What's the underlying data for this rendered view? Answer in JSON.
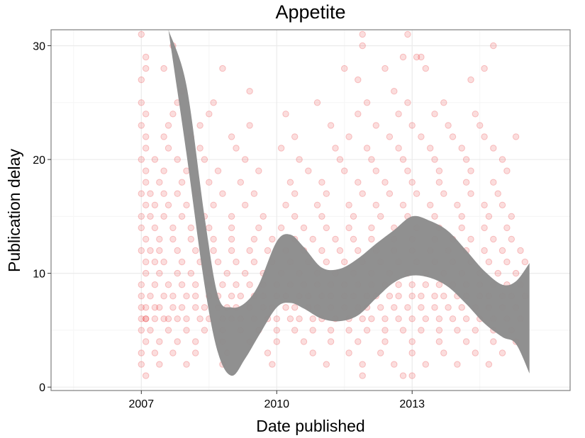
{
  "chart_data": {
    "type": "scatter",
    "title": "Appetite",
    "xlabel": "Date published",
    "ylabel": "Publication delay",
    "xlim": [
      2005.0,
      2016.5
    ],
    "ylim": [
      -0.3,
      31.4
    ],
    "x_ticks": [
      {
        "value": 2007,
        "label": "2007"
      },
      {
        "value": 2010,
        "label": "2010"
      },
      {
        "value": 2013,
        "label": "2013"
      }
    ],
    "y_ticks": [
      {
        "value": 0,
        "label": "0"
      },
      {
        "value": 10,
        "label": "10"
      },
      {
        "value": 20,
        "label": "20"
      },
      {
        "value": 30,
        "label": "30"
      }
    ],
    "grid": true,
    "legend": "none",
    "point_color": "#e41a1c",
    "point_alpha": 0.15,
    "band_color": "#8c8c8c",
    "smooth_band": {
      "x": [
        2007.6,
        2008.0,
        2008.4,
        2008.7,
        2009.0,
        2009.3,
        2009.6,
        2010.0,
        2010.3,
        2010.6,
        2011.0,
        2011.4,
        2011.8,
        2012.2,
        2012.6,
        2013.0,
        2013.4,
        2013.8,
        2014.2,
        2014.6,
        2015.0,
        2015.3,
        2015.6
      ],
      "lower": [
        31.4,
        20.5,
        9.0,
        3.0,
        1.0,
        2.5,
        4.5,
        7.0,
        7.4,
        6.9,
        6.0,
        5.8,
        6.3,
        7.8,
        9.2,
        9.8,
        9.6,
        8.8,
        7.3,
        5.6,
        4.4,
        3.8,
        1.2
      ],
      "upper": [
        31.4,
        26.5,
        15.0,
        8.0,
        7.0,
        7.4,
        9.0,
        12.8,
        13.4,
        12.3,
        10.5,
        10.4,
        11.3,
        12.6,
        13.8,
        15.0,
        14.6,
        13.7,
        12.0,
        10.2,
        9.0,
        9.3,
        10.9
      ]
    },
    "points": {
      "x": [
        2007.0,
        2007.1,
        2007.1,
        2007.3,
        2007.5,
        2007.6,
        2007.8,
        2008.0,
        2008.3,
        2008.5,
        2008.8,
        2009.0,
        2009.2,
        2009.5,
        2009.8,
        2010.0,
        2010.3,
        2010.5,
        2010.8,
        2011.0,
        2011.3,
        2011.6,
        2011.9,
        2012.1,
        2012.4,
        2012.7,
        2013.0,
        2013.3,
        2013.6,
        2013.9,
        2014.2,
        2014.5,
        2014.8,
        2015.1,
        2015.4,
        2007.0,
        2007.1,
        2007.3,
        2007.4,
        2007.7,
        2007.9,
        2008.2,
        2008.4,
        2008.7,
        2008.9,
        2009.1,
        2009.4,
        2009.7,
        2009.9,
        2010.2,
        2010.4,
        2010.7,
        2010.9,
        2011.2,
        2011.5,
        2011.8,
        2012.0,
        2012.3,
        2012.6,
        2012.9,
        2013.2,
        2013.5,
        2013.8,
        2014.1,
        2014.4,
        2014.7,
        2015.0,
        2015.3,
        2007.0,
        2007.2,
        2007.5,
        2007.7,
        2008.0,
        2008.2,
        2008.5,
        2008.7,
        2009.0,
        2009.2,
        2009.5,
        2009.7,
        2010.0,
        2010.2,
        2010.5,
        2010.7,
        2011.0,
        2011.2,
        2011.5,
        2011.7,
        2012.0,
        2012.2,
        2012.5,
        2012.7,
        2013.0,
        2013.2,
        2013.5,
        2013.7,
        2014.0,
        2014.2,
        2014.5,
        2014.7,
        2015.0,
        2015.2,
        2015.5,
        2007.0,
        2007.3,
        2007.6,
        2007.9,
        2008.2,
        2008.5,
        2008.8,
        2009.1,
        2009.4,
        2009.7,
        2010.0,
        2010.3,
        2010.6,
        2010.9,
        2011.2,
        2011.5,
        2011.8,
        2012.1,
        2012.4,
        2012.7,
        2013.0,
        2013.3,
        2013.6,
        2013.9,
        2014.2,
        2014.5,
        2014.8,
        2015.1,
        2015.4,
        2007.1,
        2007.4,
        2007.8,
        2008.1,
        2008.5,
        2008.9,
        2009.3,
        2009.7,
        2010.1,
        2010.5,
        2010.9,
        2011.3,
        2011.7,
        2012.1,
        2012.5,
        2012.9,
        2013.3,
        2013.7,
        2014.1,
        2014.5,
        2014.9,
        2015.3,
        2007.0,
        2007.2,
        2007.6,
        2008.0,
        2008.4,
        2008.8,
        2009.2,
        2009.6,
        2010.0,
        2010.4,
        2010.8,
        2011.2,
        2011.6,
        2012.0,
        2012.4,
        2012.8,
        2013.2,
        2013.6,
        2014.0,
        2014.4,
        2014.8,
        2015.2,
        2007.1,
        2007.3,
        2007.5,
        2007.9,
        2008.3,
        2008.7,
        2009.1,
        2009.5,
        2009.9,
        2010.3,
        2010.7,
        2011.1,
        2011.5,
        2011.9,
        2012.3,
        2012.7,
        2013.1,
        2013.5,
        2013.9,
        2014.3,
        2014.7,
        2015.1,
        2015.5,
        2007.0,
        2007.2,
        2007.4,
        2007.8,
        2008.2,
        2008.6,
        2009.0,
        2009.4,
        2009.8,
        2010.2,
        2010.6,
        2011.0,
        2011.4,
        2011.8,
        2012.2,
        2012.6,
        2013.0,
        2013.4,
        2013.8,
        2014.2,
        2014.6,
        2015.0,
        2015.4,
        2007.1,
        2007.4,
        2007.7,
        2008.1,
        2008.6,
        2009.0,
        2009.5,
        2009.9,
        2010.4,
        2010.8,
        2011.3,
        2011.7,
        2012.1,
        2012.6,
        2013.0,
        2013.5,
        2013.9,
        2014.3,
        2014.8,
        2015.2,
        2007.0,
        2007.3,
        2007.7,
        2008.1,
        2008.5,
        2009.0,
        2009.6,
        2010.1,
        2010.6,
        2011.1,
        2011.6,
        2012.1,
        2012.6,
        2013.1,
        2013.6,
        2014.1,
        2014.6,
        2015.1,
        2007.1,
        2007.4,
        2007.8,
        2008.2,
        2008.8,
        2009.4,
        2010.0,
        2010.6,
        2011.2,
        2011.8,
        2012.4,
        2013.0,
        2013.6,
        2014.2,
        2014.8,
        2015.3,
        2007.0,
        2007.2,
        2007.5,
        2007.9,
        2008.4,
        2009.0,
        2009.7,
        2010.4,
        2011.0,
        2011.7,
        2012.3,
        2012.9,
        2013.5,
        2014.1,
        2014.7,
        2015.2,
        2007.1,
        2007.3,
        2007.6,
        2008.0,
        2008.6,
        2009.3,
        2010.2,
        2010.9,
        2011.6,
        2012.2,
        2012.8,
        2013.4,
        2014.0,
        2014.6,
        2015.0,
        2007.0,
        2007.2,
        2007.5,
        2007.8,
        2008.2,
        2008.8,
        2009.5,
        2010.4,
        2011.1,
        2011.9,
        2012.5,
        2013.1,
        2013.7,
        2014.3,
        2014.9,
        2007.1,
        2007.4,
        2007.9,
        2008.5,
        2009.2,
        2010.3,
        2011.0,
        2011.8,
        2012.4,
        2013.0,
        2013.6,
        2014.2,
        2014.8,
        2007.0,
        2007.3,
        2007.7,
        2008.2,
        2008.9,
        2009.8,
        2010.8,
        2011.6,
        2012.3,
        2013.0,
        2013.7,
        2014.4,
        2015.0,
        2007.1,
        2007.5,
        2008.0,
        2008.7,
        2009.6,
        2010.7,
        2011.5,
        2012.2,
        2012.9,
        2013.6,
        2014.3,
        2015.1,
        2007.0,
        2007.3,
        2007.8,
        2008.4,
        2009.3,
        2010.5,
        2011.4,
        2012.1,
        2012.8,
        2013.5,
        2014.2,
        2015.0,
        2007.1,
        2007.6,
        2008.3,
        2009.1,
        2010.1,
        2011.3,
        2012.0,
        2012.7,
        2013.4,
        2014.1,
        2014.8,
        2007.0,
        2007.4,
        2008.0,
        2008.8,
        2009.9,
        2011.1,
        2011.9,
        2012.6,
        2013.3,
        2014.0,
        2014.7,
        2007.1,
        2007.5,
        2008.1,
        2009.0,
        2010.4,
        2011.6,
        2012.5,
        2013.2,
        2013.9,
        2014.6,
        2015.3,
        2007.0,
        2007.6,
        2008.3,
        2009.4,
        2011.2,
        2012.2,
        2013.0,
        2013.8,
        2014.5,
        2007.1,
        2007.7,
        2008.5,
        2010.2,
        2011.8,
        2012.7,
        2013.5,
        2014.4,
        2007.0,
        2007.8,
        2008.6,
        2010.9,
        2012.0,
        2012.9,
        2013.7,
        2007.1,
        2007.5,
        2008.8,
        2011.5,
        2012.4,
        2013.3,
        2014.6,
        2007.0,
        2007.9,
        2009.4,
        2011.8,
        2012.6,
        2013.1,
        2014.3,
        2007.1,
        2007.7,
        2011.9,
        2012.8,
        2013.2,
        2014.8,
        2007.0,
        2011.9,
        2012.9,
        2013.0,
        2007.1,
        2011.9,
        2012.8
      ],
      "y": [
        6,
        6,
        6,
        6,
        6,
        6,
        6,
        6,
        6,
        6,
        6,
        6,
        6,
        6,
        6,
        6,
        6,
        6,
        6,
        6,
        6,
        6,
        6,
        6,
        6,
        6,
        6,
        6,
        6,
        6,
        6,
        6,
        6,
        6,
        6,
        7,
        7,
        7,
        7,
        7,
        7,
        7,
        7,
        7,
        7,
        7,
        7,
        7,
        7,
        7,
        7,
        7,
        7,
        7,
        7,
        7,
        7,
        7,
        7,
        7,
        7,
        7,
        7,
        7,
        7,
        7,
        7,
        7,
        8,
        8,
        8,
        8,
        8,
        8,
        8,
        8,
        8,
        8,
        8,
        8,
        8,
        8,
        8,
        8,
        8,
        8,
        8,
        8,
        8,
        8,
        8,
        8,
        8,
        8,
        8,
        8,
        8,
        8,
        8,
        8,
        8,
        8,
        8,
        9,
        9,
        9,
        9,
        9,
        9,
        9,
        9,
        9,
        9,
        9,
        9,
        9,
        9,
        9,
        9,
        9,
        9,
        9,
        9,
        9,
        9,
        9,
        9,
        9,
        9,
        9,
        9,
        9,
        10,
        10,
        10,
        10,
        10,
        10,
        10,
        10,
        10,
        10,
        10,
        10,
        10,
        10,
        10,
        10,
        10,
        10,
        10,
        10,
        10,
        10,
        5,
        5,
        5,
        5,
        5,
        5,
        5,
        5,
        5,
        5,
        5,
        5,
        5,
        5,
        5,
        5,
        5,
        5,
        5,
        5,
        5,
        5,
        11,
        11,
        11,
        11,
        11,
        11,
        11,
        11,
        11,
        11,
        11,
        11,
        11,
        11,
        11,
        11,
        11,
        11,
        11,
        11,
        11,
        11,
        11,
        12,
        12,
        12,
        12,
        12,
        12,
        12,
        12,
        12,
        12,
        12,
        12,
        12,
        12,
        12,
        12,
        12,
        12,
        12,
        12,
        12,
        12,
        12,
        13,
        13,
        13,
        13,
        13,
        13,
        13,
        13,
        13,
        13,
        13,
        13,
        13,
        13,
        13,
        13,
        13,
        13,
        13,
        13,
        14,
        14,
        14,
        14,
        14,
        14,
        14,
        14,
        14,
        14,
        14,
        14,
        14,
        14,
        14,
        14,
        14,
        14,
        4,
        4,
        4,
        4,
        4,
        4,
        4,
        4,
        4,
        4,
        4,
        4,
        4,
        4,
        4,
        4,
        15,
        15,
        15,
        15,
        15,
        15,
        15,
        15,
        15,
        15,
        15,
        15,
        15,
        15,
        15,
        15,
        16,
        16,
        16,
        16,
        16,
        16,
        16,
        16,
        16,
        16,
        16,
        16,
        16,
        16,
        16,
        17,
        17,
        17,
        17,
        17,
        17,
        17,
        17,
        17,
        17,
        17,
        17,
        17,
        17,
        17,
        18,
        18,
        18,
        18,
        18,
        18,
        18,
        18,
        18,
        18,
        18,
        18,
        18,
        3,
        3,
        3,
        3,
        3,
        3,
        3,
        3,
        3,
        3,
        3,
        3,
        3,
        19,
        19,
        19,
        19,
        19,
        19,
        19,
        19,
        19,
        19,
        19,
        19,
        20,
        20,
        20,
        20,
        20,
        20,
        20,
        20,
        20,
        20,
        20,
        20,
        21,
        21,
        21,
        21,
        21,
        21,
        21,
        21,
        21,
        21,
        21,
        2,
        2,
        2,
        2,
        2,
        2,
        2,
        2,
        2,
        2,
        2,
        22,
        22,
        22,
        22,
        22,
        22,
        22,
        22,
        22,
        22,
        22,
        23,
        23,
        23,
        23,
        23,
        23,
        23,
        23,
        23,
        24,
        24,
        24,
        24,
        24,
        24,
        24,
        24,
        25,
        25,
        25,
        25,
        25,
        25,
        25,
        28,
        28,
        28,
        28,
        28,
        28,
        28,
        27,
        26,
        26,
        27,
        26,
        29,
        27,
        29,
        30,
        30,
        29,
        29,
        30,
        31,
        31,
        31,
        1,
        1,
        1,
        1
      ]
    }
  }
}
